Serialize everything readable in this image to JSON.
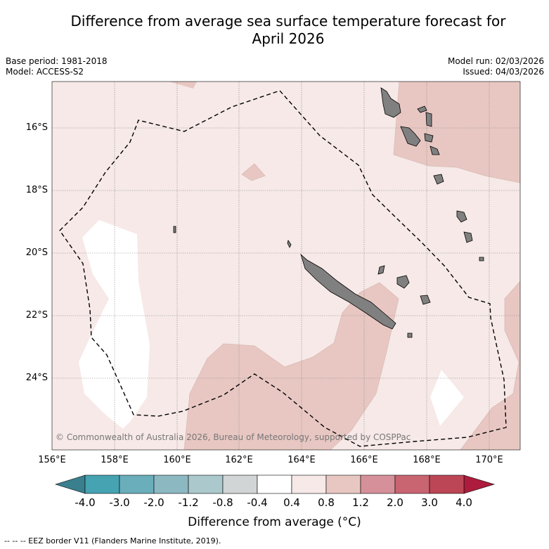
{
  "title_line1": "Difference from average sea surface temperature forecast for",
  "title_line2": "April 2026",
  "base_period": "Base period: 1981-2018",
  "model": "Model: ACCESS-S2",
  "model_run": "Model run: 02/03/2026",
  "issued": "Issued: 04/03/2026",
  "copyright": "© Commonwealth of Australia 2026, Bureau of Meteorology, supported by COSPPac",
  "lon_labels": [
    "156°E",
    "158°E",
    "160°E",
    "162°E",
    "164°E",
    "166°E",
    "168°E",
    "170°E"
  ],
  "lat_labels": [
    "16°S",
    "18°S",
    "20°S",
    "22°S",
    "24°S"
  ],
  "colorbar_ticks": [
    "-4.0",
    "-3.0",
    "-2.0",
    "-1.2",
    "-0.8",
    "-0.4",
    "0.4",
    "0.8",
    "1.2",
    "2.0",
    "3.0",
    "4.0"
  ],
  "colorbar_colors": {
    "below_min": "#3a7f8d",
    "bins": [
      "#45a3b2",
      "#6aaebb",
      "#8cb8c2",
      "#abc8cc",
      "#d1d5d6",
      "#ffffff",
      "#f6e9e7",
      "#e8c7c2",
      "#d6909a",
      "#c96471",
      "#bc4655"
    ],
    "above_max": "#ad1c3c"
  },
  "colorbar_title": "Difference from average (°C)",
  "footnote": "--  --  -- EEZ border V11 (Flanders Marine Institute, 2019)."
}
